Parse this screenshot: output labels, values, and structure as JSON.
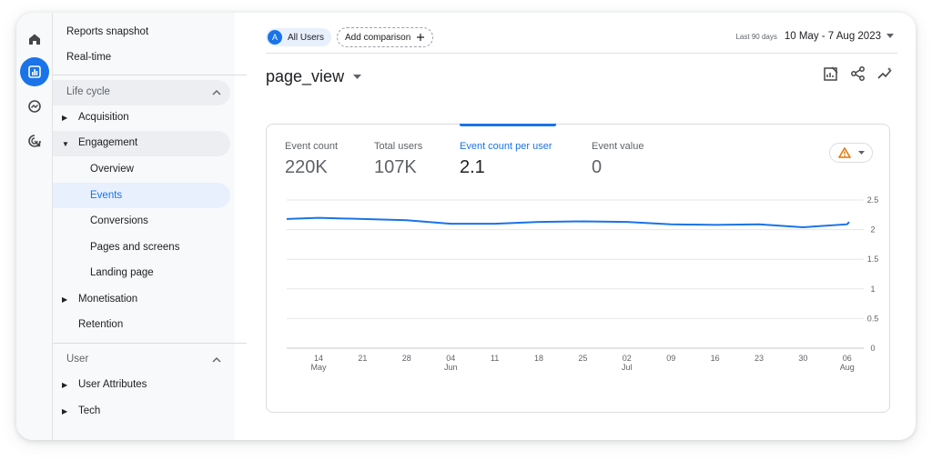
{
  "sidebar": {
    "reports_snapshot": "Reports snapshot",
    "real_time": "Real-time",
    "lifecycle": {
      "label": "Life cycle",
      "acquisition": "Acquisition",
      "engagement": "Engagement",
      "engagement_items": [
        "Overview",
        "Events",
        "Conversions",
        "Pages and screens",
        "Landing page"
      ],
      "monetisation": "Monetisation",
      "retention": "Retention"
    },
    "user": {
      "label": "User",
      "user_attributes": "User Attributes",
      "tech": "Tech"
    },
    "active_item": "Events"
  },
  "rail": {
    "icons": [
      "home-icon",
      "reports-icon",
      "explore-icon",
      "advertising-icon"
    ],
    "active": "reports-icon"
  },
  "header": {
    "segment_initial": "A",
    "segment_label": "All Users",
    "add_comparison": "Add comparison",
    "date_preset": "Last 90 days",
    "date_range": "10 May - 7 Aug 2023"
  },
  "page": {
    "title": "page_view"
  },
  "metrics": [
    {
      "label": "Event count",
      "value": "220K"
    },
    {
      "label": "Total users",
      "value": "107K"
    },
    {
      "label": "Event count per user",
      "value": "2.1",
      "active": true
    },
    {
      "label": "Event value",
      "value": "0"
    }
  ],
  "colors": {
    "accent": "#1a73e8",
    "warning": "#e37400"
  },
  "chart_data": {
    "type": "line",
    "x": [
      "10 May",
      "14 May",
      "21 May",
      "28 May",
      "04 Jun",
      "11 Jun",
      "18 Jun",
      "25 Jun",
      "02 Jul",
      "09 Jul",
      "16 Jul",
      "23 Jul",
      "30 Jul",
      "06 Aug",
      "07 Aug"
    ],
    "series": [
      {
        "values": [
          2.18,
          2.2,
          2.18,
          2.16,
          2.1,
          2.1,
          2.13,
          2.14,
          2.13,
          2.09,
          2.08,
          2.09,
          2.04,
          2.09,
          2.13
        ]
      }
    ],
    "x_ticks": [
      {
        "day": "14",
        "month": "May"
      },
      {
        "day": "21",
        "month": ""
      },
      {
        "day": "28",
        "month": ""
      },
      {
        "day": "04",
        "month": "Jun"
      },
      {
        "day": "11",
        "month": ""
      },
      {
        "day": "18",
        "month": ""
      },
      {
        "day": "25",
        "month": ""
      },
      {
        "day": "02",
        "month": "Jul"
      },
      {
        "day": "09",
        "month": ""
      },
      {
        "day": "16",
        "month": ""
      },
      {
        "day": "23",
        "month": ""
      },
      {
        "day": "30",
        "month": ""
      },
      {
        "day": "06",
        "month": "Aug"
      }
    ],
    "y_ticks": [
      "2.5",
      "2",
      "1.5",
      "1",
      "0.5",
      "0"
    ],
    "ylim": [
      0,
      2.5
    ],
    "grid": true,
    "title": "",
    "xlabel": "",
    "ylabel": ""
  }
}
